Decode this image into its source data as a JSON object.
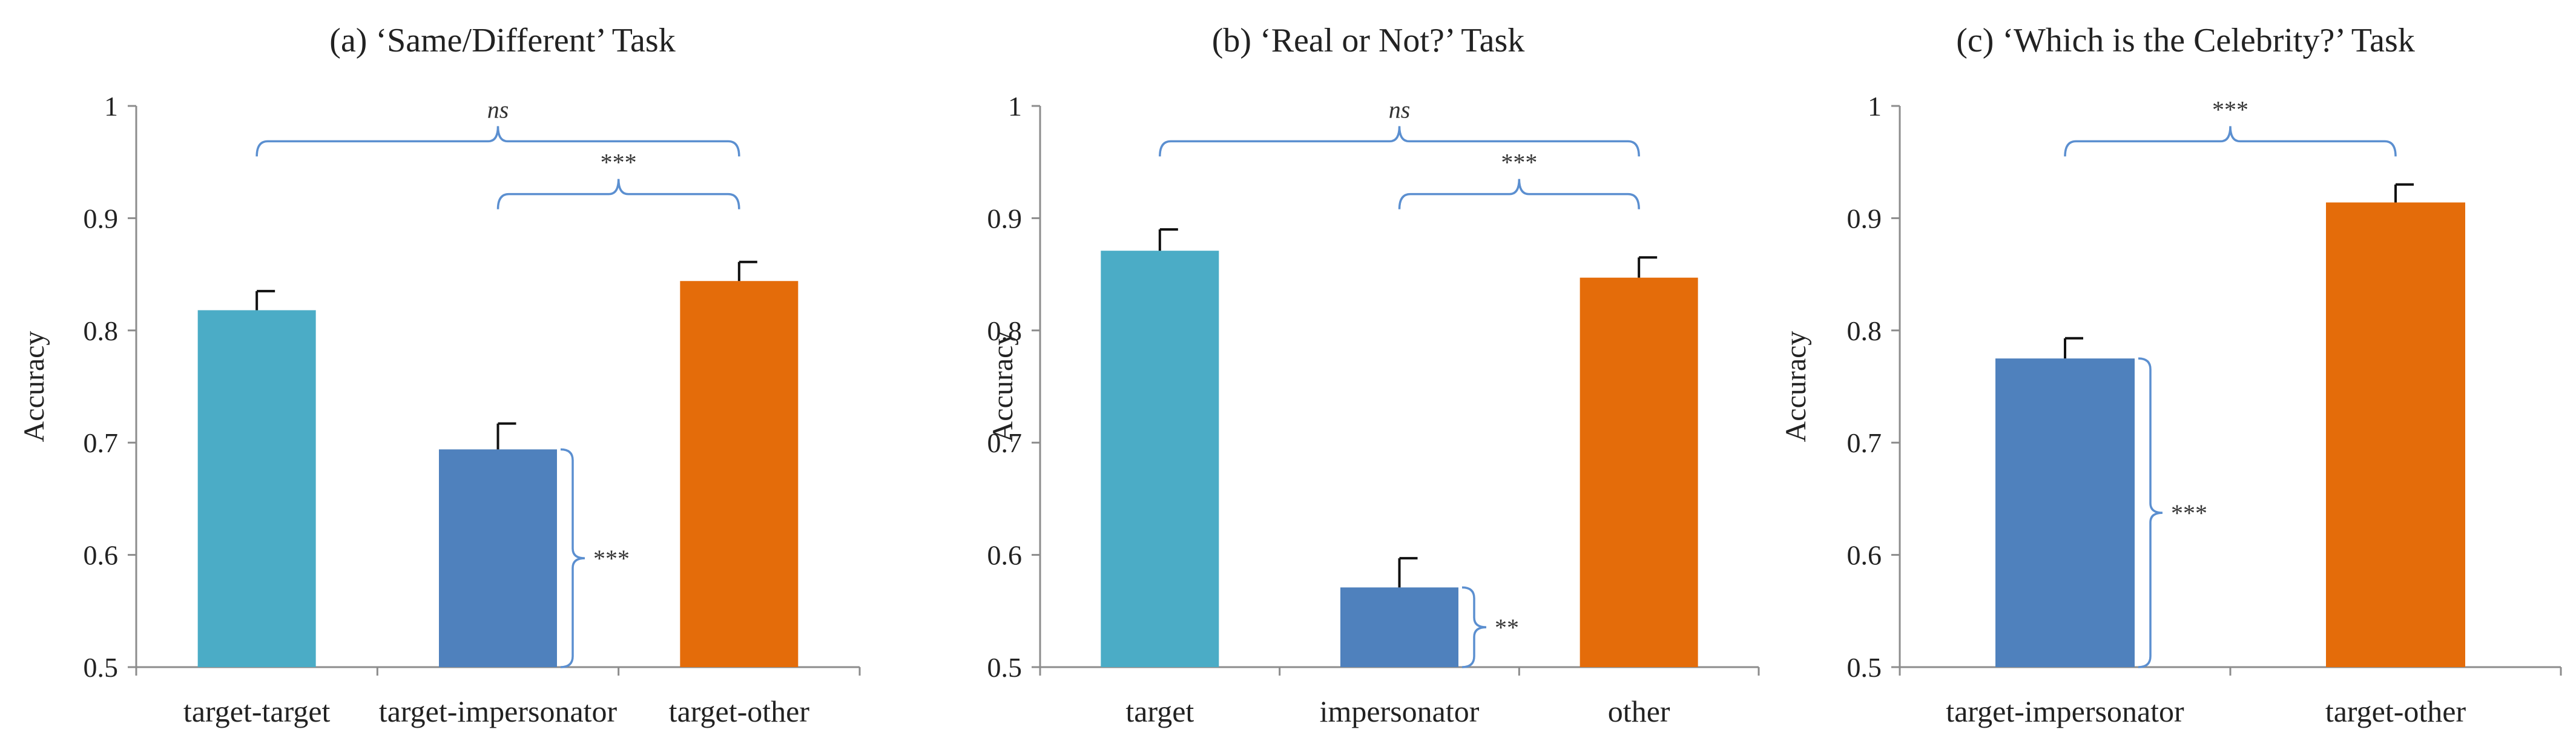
{
  "chart_data": [
    {
      "type": "bar",
      "title": "(a) ‘Same/Different’ Task",
      "ylabel": "Accuracy",
      "ylim": [
        0.5,
        1
      ],
      "yticks": [
        "0.5",
        "0.6",
        "0.7",
        "0.8",
        "0.9",
        "1"
      ],
      "categories": [
        "target-target",
        "target-impersonator",
        "target-other"
      ],
      "values": [
        0.818,
        0.694,
        0.844
      ],
      "errors": [
        0.017,
        0.023,
        0.017
      ],
      "colors": [
        "#4bacc6",
        "#4f81bd",
        "#e46c0a"
      ],
      "grid": false,
      "annotations": [
        {
          "type": "bracket",
          "from": 0,
          "to": 2,
          "label": "ns"
        },
        {
          "type": "bracket",
          "from": 1,
          "to": 2,
          "label": "***"
        },
        {
          "type": "side",
          "bar": 1,
          "label": "***"
        }
      ]
    },
    {
      "type": "bar",
      "title": "(b) ‘Real or Not?’ Task",
      "ylabel": "Accuracy",
      "ylim": [
        0.5,
        1
      ],
      "yticks": [
        "0.5",
        "0.6",
        "0.7",
        "0.8",
        "0.9",
        "1"
      ],
      "categories": [
        "target",
        "impersonator",
        "other"
      ],
      "values": [
        0.871,
        0.571,
        0.847
      ],
      "errors": [
        0.019,
        0.026,
        0.018
      ],
      "colors": [
        "#4bacc6",
        "#4f81bd",
        "#e46c0a"
      ],
      "grid": false,
      "annotations": [
        {
          "type": "bracket",
          "from": 0,
          "to": 2,
          "label": "ns"
        },
        {
          "type": "bracket",
          "from": 1,
          "to": 2,
          "label": "***"
        },
        {
          "type": "side",
          "bar": 1,
          "label": "**"
        }
      ]
    },
    {
      "type": "bar",
      "title": "(c) ‘Which is the Celebrity?’ Task",
      "ylabel": "Accuracy",
      "ylim": [
        0.5,
        1
      ],
      "yticks": [
        "0.5",
        "0.6",
        "0.7",
        "0.8",
        "0.9",
        "1"
      ],
      "categories": [
        "target-impersonator",
        "target-other"
      ],
      "values": [
        0.775,
        0.914
      ],
      "errors": [
        0.018,
        0.016
      ],
      "colors": [
        "#4f81bd",
        "#e46c0a"
      ],
      "grid": false,
      "annotations": [
        {
          "type": "bracket",
          "from": 0,
          "to": 1,
          "label": "***"
        },
        {
          "type": "side",
          "bar": 0,
          "label": "***"
        }
      ]
    }
  ]
}
